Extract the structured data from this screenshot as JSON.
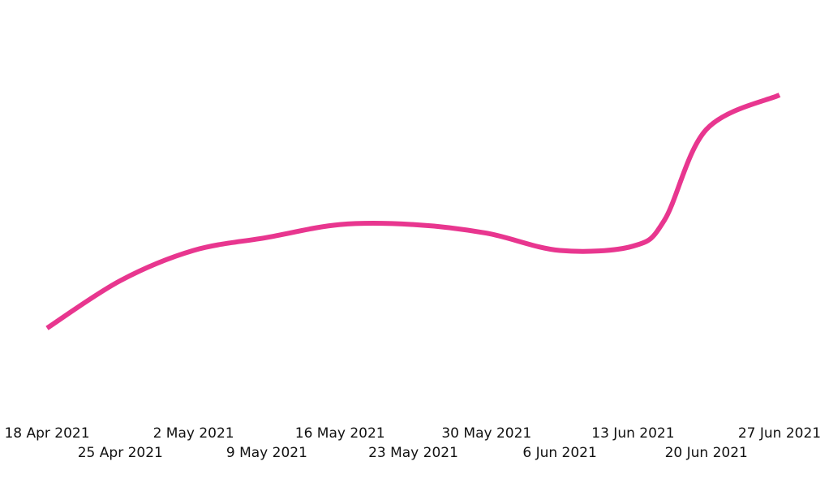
{
  "chart_data": {
    "type": "line",
    "title": "",
    "xlabel": "",
    "ylabel": "",
    "grid": false,
    "legend": "none",
    "line_color": "#e8368f",
    "x": [
      "2021-04-18",
      "2021-04-25",
      "2021-05-02",
      "2021-05-09",
      "2021-05-16",
      "2021-05-23",
      "2021-05-30",
      "2021-06-06",
      "2021-06-13",
      "2021-06-16",
      "2021-06-20",
      "2021-06-27"
    ],
    "values": [
      29,
      34.5,
      38,
      39.5,
      41,
      41,
      40,
      38,
      38.5,
      41.5,
      52,
      56
    ],
    "ylim": [
      20,
      67
    ],
    "x_ticks": [
      {
        "date": "2021-04-18",
        "label": "18 Apr 2021"
      },
      {
        "date": "2021-04-25",
        "label": "25 Apr 2021"
      },
      {
        "date": "2021-05-02",
        "label": "2 May 2021"
      },
      {
        "date": "2021-05-09",
        "label": "9 May 2021"
      },
      {
        "date": "2021-05-16",
        "label": "16 May 2021"
      },
      {
        "date": "2021-05-23",
        "label": "23 May 2021"
      },
      {
        "date": "2021-05-30",
        "label": "30 May 2021"
      },
      {
        "date": "2021-06-06",
        "label": "6 Jun 2021"
      },
      {
        "date": "2021-06-13",
        "label": "13 Jun 2021"
      },
      {
        "date": "2021-06-20",
        "label": "20 Jun 2021"
      },
      {
        "date": "2021-06-27",
        "label": "27 Jun 2021"
      }
    ]
  }
}
